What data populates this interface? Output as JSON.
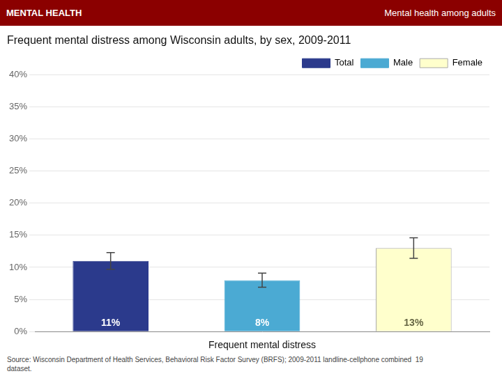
{
  "chart_data": {
    "type": "bar",
    "title": "Frequent mental distress among Wisconsin adults, by sex, 2009-2011",
    "annotations": [
      "MENTAL HEALTH",
      "Mental health among adults",
      "Source: Wisconsin Department of Health Services, Behavioral Risk Factor Survey (BRFS); 2009-2011 landline-cellphone combined  19\ndataset."
    ],
    "xlabel": "Frequent mental distress",
    "categories": [
      "Total",
      "Male",
      "Female"
    ],
    "values": [
      11,
      8,
      13
    ],
    "value_labels": [
      "11%",
      "8%",
      "13%"
    ],
    "error_bars": [
      1.3,
      1.1,
      1.6
    ],
    "colors": [
      "#2B3A8C",
      "#4BAAD3",
      "#FFFFCC"
    ],
    "ylim": [
      0,
      40
    ],
    "yticks": [
      {
        "value": 0,
        "label": "0%"
      },
      {
        "value": 5,
        "label": "5%"
      },
      {
        "value": 10,
        "label": "10%"
      },
      {
        "value": 15,
        "label": "15%"
      },
      {
        "value": 20,
        "label": "20%"
      },
      {
        "value": 25,
        "label": "25%"
      },
      {
        "value": 30,
        "label": "30%"
      },
      {
        "value": 35,
        "label": "35%"
      },
      {
        "value": 40,
        "label": "40%"
      }
    ],
    "grid": true,
    "legend": "upper right",
    "data_labels": true,
    "tick_labels": "y"
  }
}
